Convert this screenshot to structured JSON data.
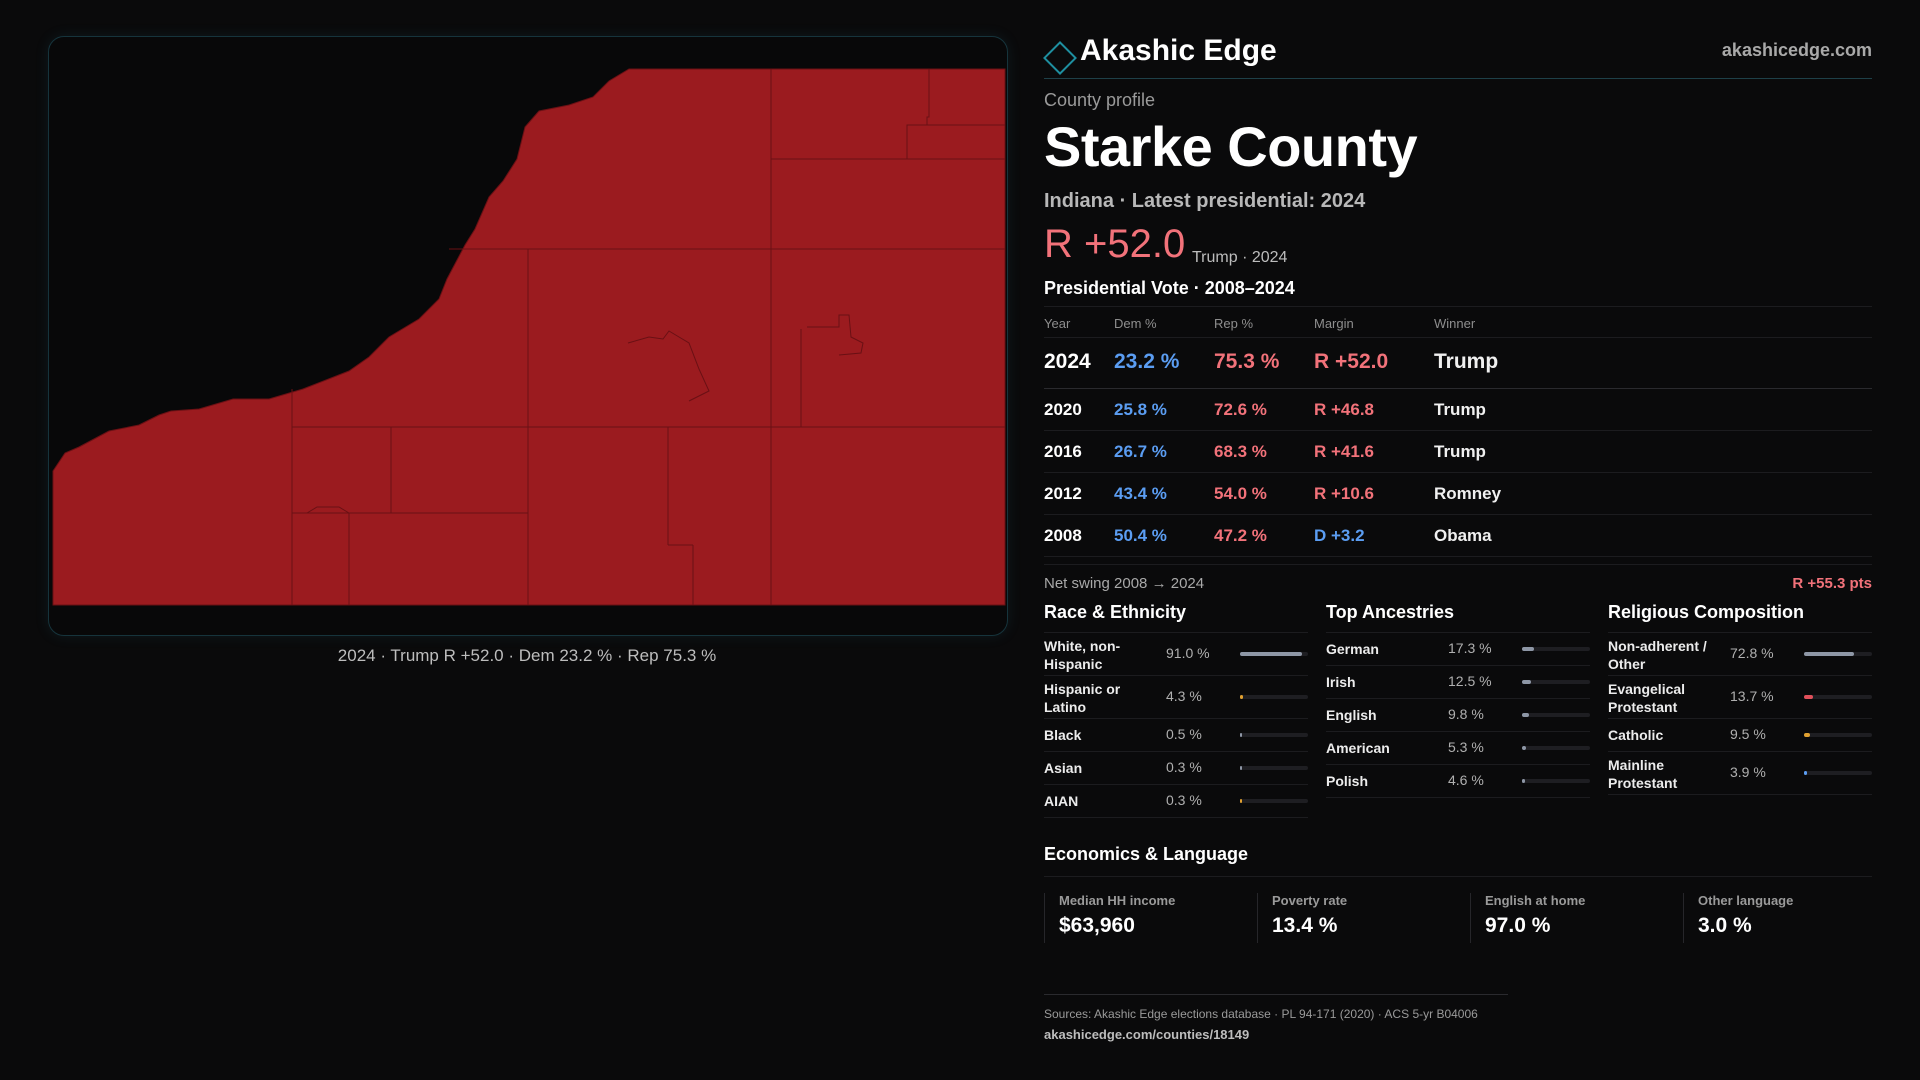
{
  "brand": {
    "name": "Akashic Edge",
    "url": "akashicedge.com",
    "icon": "diamond-outline-icon",
    "accent": "#1e8fa0"
  },
  "colors": {
    "rep": "#f2727a",
    "dem": "#5b9df2",
    "map_fill": "#9b1b1f",
    "map_border": "#6a1014"
  },
  "map": {
    "caption": "2024 · Trump R +52.0 · Dem 23.2 % · Rep 75.3 %"
  },
  "profile": {
    "eyebrow": "County profile",
    "title": "Starke County",
    "subtitle": "Indiana · Latest presidential: 2024",
    "headline_margin": "R +52.0",
    "headline_meta": "Trump · 2024"
  },
  "vote": {
    "section_title": "Presidential Vote · 2008–2024",
    "headers": {
      "year": "Year",
      "dem": "Dem %",
      "rep": "Rep %",
      "margin": "Margin",
      "winner": "Winner"
    },
    "rows": [
      {
        "year": "2024",
        "dem": "23.2 %",
        "rep": "75.3 %",
        "margin": "R +52.0",
        "party": "R",
        "winner": "Trump"
      },
      {
        "year": "2020",
        "dem": "25.8 %",
        "rep": "72.6 %",
        "margin": "R +46.8",
        "party": "R",
        "winner": "Trump"
      },
      {
        "year": "2016",
        "dem": "26.7 %",
        "rep": "68.3 %",
        "margin": "R +41.6",
        "party": "R",
        "winner": "Trump"
      },
      {
        "year": "2012",
        "dem": "43.4 %",
        "rep": "54.0 %",
        "margin": "R +10.6",
        "party": "R",
        "winner": "Romney"
      },
      {
        "year": "2008",
        "dem": "50.4 %",
        "rep": "47.2 %",
        "margin": "D +3.2",
        "party": "D",
        "winner": "Obama"
      }
    ],
    "net_swing_label": "Net swing 2008 → 2024",
    "net_swing_value": "R +55.3 pts"
  },
  "race": {
    "title": "Race & Ethnicity",
    "items": [
      {
        "label": "White, non-Hispanic",
        "value": "91.0 %",
        "fraction": 0.91,
        "color": "#8e97a6"
      },
      {
        "label": "Hispanic or Latino",
        "value": "4.3 %",
        "fraction": 0.043,
        "color": "#e0a030"
      },
      {
        "label": "Black",
        "value": "0.5 %",
        "fraction": 0.005,
        "color": "#8e97a6"
      },
      {
        "label": "Asian",
        "value": "0.3 %",
        "fraction": 0.003,
        "color": "#8e97a6"
      },
      {
        "label": "AIAN",
        "value": "0.3 %",
        "fraction": 0.003,
        "color": "#e0a030"
      }
    ]
  },
  "ancestry": {
    "title": "Top Ancestries",
    "items": [
      {
        "label": "German",
        "value": "17.3 %",
        "fraction": 0.173,
        "color": "#8e97a6"
      },
      {
        "label": "Irish",
        "value": "12.5 %",
        "fraction": 0.125,
        "color": "#8e97a6"
      },
      {
        "label": "English",
        "value": "9.8 %",
        "fraction": 0.098,
        "color": "#8e97a6"
      },
      {
        "label": "American",
        "value": "5.3 %",
        "fraction": 0.053,
        "color": "#8e97a6"
      },
      {
        "label": "Polish",
        "value": "4.6 %",
        "fraction": 0.046,
        "color": "#8e97a6"
      }
    ]
  },
  "religion": {
    "title": "Religious Composition",
    "items": [
      {
        "label": "Non-adherent / Other",
        "value": "72.8 %",
        "fraction": 0.728,
        "color": "#8e97a6"
      },
      {
        "label": "Evangelical Protestant",
        "value": "13.7 %",
        "fraction": 0.137,
        "color": "#e0505a"
      },
      {
        "label": "Catholic",
        "value": "9.5 %",
        "fraction": 0.095,
        "color": "#e0a030"
      },
      {
        "label": "Mainline Protestant",
        "value": "3.9 %",
        "fraction": 0.039,
        "color": "#5b9df2"
      }
    ]
  },
  "economics": {
    "title": "Economics & Language",
    "items": [
      {
        "label": "Median HH income",
        "value": "$63,960"
      },
      {
        "label": "Poverty rate",
        "value": "13.4 %"
      },
      {
        "label": "English at home",
        "value": "97.0 %"
      },
      {
        "label": "Other language",
        "value": "3.0 %"
      }
    ]
  },
  "sources": {
    "line1": "Sources: Akashic Edge elections database · PL 94-171 (2020) · ACS 5-yr B04006",
    "line2": "akashicedge.com/counties/18149"
  }
}
